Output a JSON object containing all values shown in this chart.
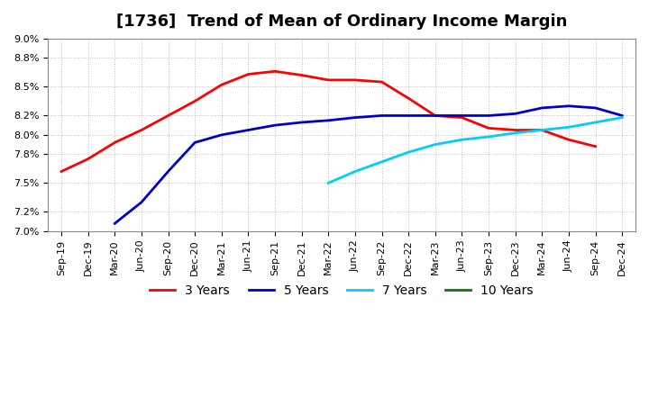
{
  "title": "[1736]  Trend of Mean of Ordinary Income Margin",
  "ylim": [
    7.0,
    9.0
  ],
  "yticks": [
    7.0,
    7.2,
    7.5,
    7.8,
    8.0,
    8.2,
    8.5,
    8.8,
    9.0
  ],
  "x_labels": [
    "Sep-19",
    "Dec-19",
    "Mar-20",
    "Jun-20",
    "Sep-20",
    "Dec-20",
    "Mar-21",
    "Jun-21",
    "Sep-21",
    "Dec-21",
    "Mar-22",
    "Jun-22",
    "Sep-22",
    "Dec-22",
    "Mar-23",
    "Jun-23",
    "Sep-23",
    "Dec-23",
    "Mar-24",
    "Jun-24",
    "Sep-24",
    "Dec-24"
  ],
  "series": {
    "3 Years": {
      "color": "#ff0000",
      "data_x": [
        0,
        1,
        2,
        3,
        4,
        5,
        6,
        7,
        8,
        9,
        10,
        11,
        12,
        13,
        14,
        15,
        16,
        17,
        18,
        19,
        20
      ],
      "data_y": [
        7.62,
        7.75,
        7.92,
        8.05,
        8.2,
        8.35,
        8.52,
        8.63,
        8.66,
        8.62,
        8.57,
        8.57,
        8.55,
        8.38,
        8.2,
        8.18,
        8.07,
        8.05,
        8.05,
        7.95,
        7.88
      ]
    },
    "5 Years": {
      "color": "#0000cc",
      "data_x": [
        2,
        3,
        4,
        5,
        6,
        7,
        8,
        9,
        10,
        11,
        12,
        13,
        14,
        15,
        16,
        17,
        18,
        19,
        20,
        21
      ],
      "data_y": [
        7.08,
        7.3,
        7.62,
        7.92,
        8.0,
        8.05,
        8.1,
        8.13,
        8.15,
        8.18,
        8.2,
        8.2,
        8.2,
        8.2,
        8.2,
        8.22,
        8.28,
        8.3,
        8.28,
        8.2
      ]
    },
    "7 Years": {
      "color": "#00ccff",
      "data_x": [
        10,
        11,
        12,
        13,
        14,
        15,
        16,
        17,
        18,
        19,
        20,
        21
      ],
      "data_y": [
        7.5,
        7.62,
        7.72,
        7.82,
        7.9,
        7.95,
        7.98,
        8.02,
        8.05,
        8.08,
        8.13,
        8.18
      ]
    },
    "10 Years": {
      "color": "#008000",
      "data_x": [],
      "data_y": []
    }
  },
  "background_color": "#ffffff",
  "grid_color": "#aaaaaa",
  "title_fontsize": 13,
  "legend_fontsize": 10
}
